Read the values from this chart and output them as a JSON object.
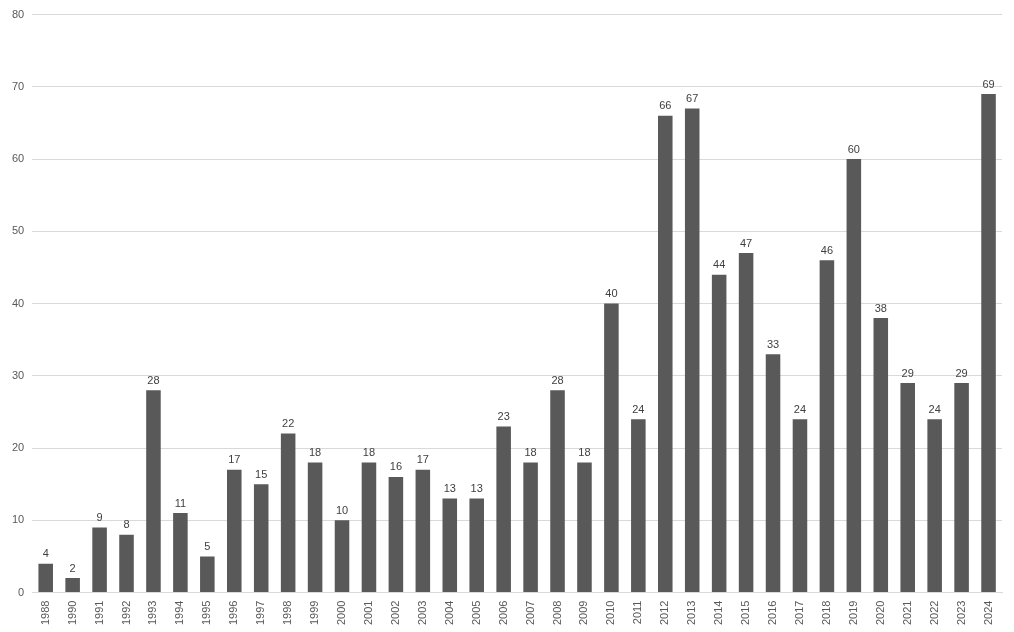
{
  "chart_data": {
    "type": "bar",
    "categories": [
      "1988",
      "1990",
      "1991",
      "1992",
      "1993",
      "1994",
      "1995",
      "1996",
      "1997",
      "1998",
      "1999",
      "2000",
      "2001",
      "2002",
      "2003",
      "2004",
      "2005",
      "2006",
      "2007",
      "2008",
      "2009",
      "2010",
      "2011",
      "2012",
      "2013",
      "2014",
      "2015",
      "2016",
      "2017",
      "2018",
      "2019",
      "2020",
      "2021",
      "2022",
      "2023",
      "2024"
    ],
    "values": [
      4,
      2,
      9,
      8,
      28,
      11,
      5,
      17,
      15,
      22,
      18,
      10,
      18,
      16,
      17,
      13,
      13,
      23,
      18,
      28,
      18,
      40,
      24,
      66,
      67,
      44,
      47,
      33,
      24,
      46,
      60,
      38,
      29,
      24,
      29,
      69
    ],
    "color": "#595959",
    "ylim": [
      0,
      80
    ],
    "yticks": [
      0,
      10,
      20,
      30,
      40,
      50,
      60,
      70,
      80
    ],
    "grid": "y",
    "data_labels": true,
    "legend": false
  }
}
